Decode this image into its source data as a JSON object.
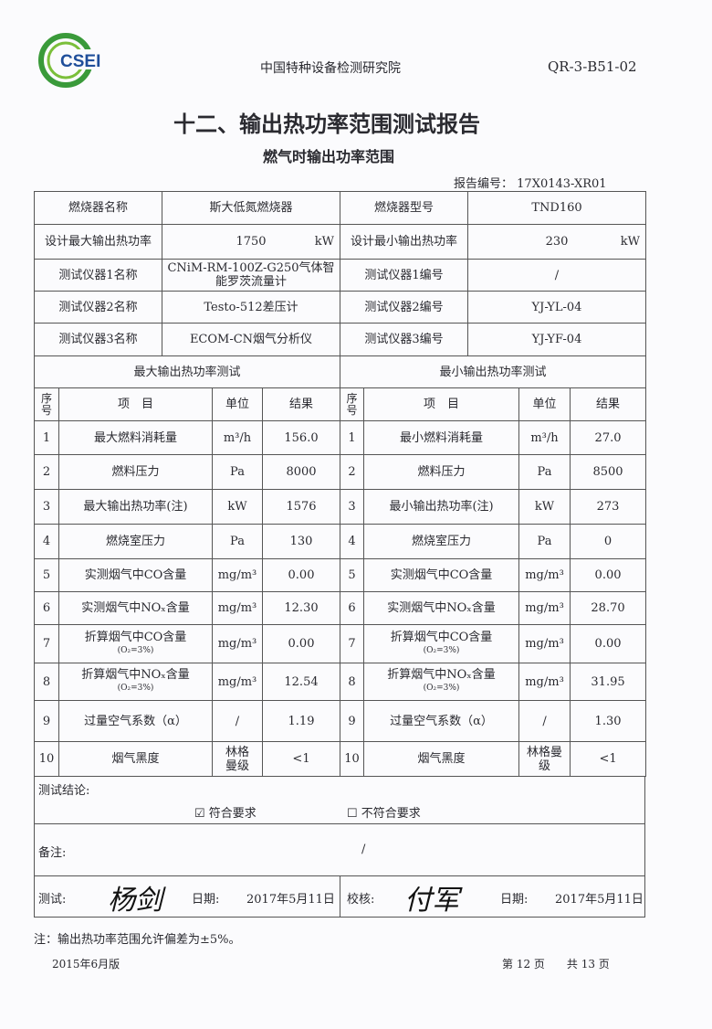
{
  "header": {
    "logo_text": "CSEI",
    "org": "中国特种设备检测研究院",
    "form_code": "QR-3-B51-02"
  },
  "title": "十二、输出热功率范围测试报告",
  "subtitle": "燃气时输出功率范围",
  "report_no_label": "报告编号：",
  "report_no": "17X0143-XR01",
  "info": [
    [
      "燃烧器名称",
      "斯大低氮燃烧器",
      "燃烧器型号",
      "TND160"
    ],
    [
      "设计最大输出热功率",
      "1750",
      "设计最小输出热功率",
      "230"
    ],
    [
      "测试仪器1名称",
      "CNiM-RM-100Z-G250气体智能罗茨流量计",
      "测试仪器1编号",
      "/"
    ],
    [
      "测试仪器2名称",
      "Testo-512差压计",
      "测试仪器2编号",
      "YJ-YL-04"
    ],
    [
      "测试仪器3名称",
      "ECOM-CN烟气分析仪",
      "测试仪器3编号",
      "YJ-YF-04"
    ]
  ],
  "power_unit": "kW",
  "sections": {
    "max": "最大输出热功率测试",
    "min": "最小输出热功率测试"
  },
  "columns": [
    "序号",
    "项　目",
    "单位",
    "结果"
  ],
  "rows": [
    {
      "no": "1",
      "max_item": "最大燃料消耗量",
      "min_item": "最小燃料消耗量",
      "unit": "m³/h",
      "max": "156.0",
      "min": "27.0"
    },
    {
      "no": "2",
      "max_item": "燃料压力",
      "min_item": "燃料压力",
      "unit": "Pa",
      "max": "8000",
      "min": "8500"
    },
    {
      "no": "3",
      "max_item": "最大输出热功率(注)",
      "min_item": "最小输出热功率(注)",
      "unit": "kW",
      "max": "1576",
      "min": "273"
    },
    {
      "no": "4",
      "max_item": "燃烧室压力",
      "min_item": "燃烧室压力",
      "unit": "Pa",
      "max": "130",
      "min": "0"
    },
    {
      "no": "5",
      "max_item": "实测烟气中CO含量",
      "min_item": "实测烟气中CO含量",
      "unit": "mg/m³",
      "max": "0.00",
      "min": "0.00"
    },
    {
      "no": "6",
      "max_item": "实测烟气中NOₓ含量",
      "min_item": "实测烟气中NOₓ含量",
      "unit": "mg/m³",
      "max": "12.30",
      "min": "28.70"
    },
    {
      "no": "7",
      "max_item": "折算烟气中CO含量",
      "min_item": "折算烟气中CO含量",
      "sub": "(O₂=3%)",
      "unit": "mg/m³",
      "max": "0.00",
      "min": "0.00"
    },
    {
      "no": "8",
      "max_item": "折算烟气中NOₓ含量",
      "min_item": "折算烟气中NOₓ含量",
      "sub": "(O₂=3%)",
      "unit": "mg/m³",
      "max": "12.54",
      "min": "31.95"
    },
    {
      "no": "9",
      "max_item": "过量空气系数（α）",
      "min_item": "过量空气系数（α）",
      "unit": "/",
      "max": "1.19",
      "min": "1.30"
    },
    {
      "no": "10",
      "max_item": "烟气黑度",
      "min_item": "烟气黑度",
      "unit": "林格曼级",
      "max": "<1",
      "min": "<1"
    }
  ],
  "conclusion": {
    "label": "测试结论:",
    "pass": "☑  符合要求",
    "fail": "☐  不符合要求"
  },
  "remark": {
    "label": "备注:",
    "value": "/"
  },
  "sign": {
    "tester_label": "测试:",
    "tester_sig": "杨剑",
    "date_label": "日期:",
    "date1": "2017年5月11日",
    "checker_label": "校核:",
    "checker_sig": "付军",
    "date2": "2017年5月11日"
  },
  "note": "注：输出热功率范围允许偏差为±5%。",
  "footer": {
    "edition": "2015年6月版",
    "page": "第 12 页　　共 13 页"
  }
}
